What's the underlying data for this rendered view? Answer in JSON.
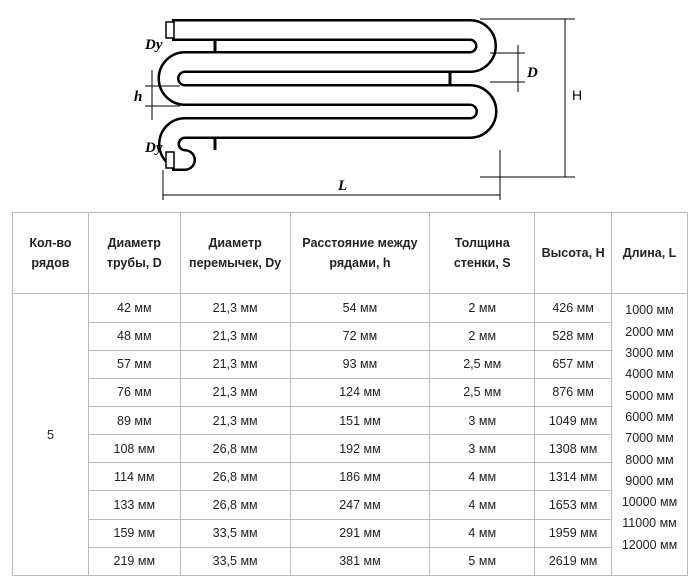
{
  "diagram": {
    "labels": {
      "dy_top": "Dy",
      "d": "D",
      "h": "h",
      "height": "H",
      "dy_bottom": "Dy",
      "length": "L"
    }
  },
  "table": {
    "header": [
      "Кол-во рядов",
      "Диаметр трубы, D",
      "Диаметр перемычек, Dy",
      "Расстояние между рядами, h",
      "Толщина стенки, S",
      "Высота, H",
      "Длина, L"
    ],
    "rows_count": "5",
    "rows": [
      [
        "42 мм",
        "21,3 мм",
        "54 мм",
        "2 мм",
        "426 мм"
      ],
      [
        "48 мм",
        "21,3 мм",
        "72 мм",
        "2 мм",
        "528 мм"
      ],
      [
        "57 мм",
        "21,3 мм",
        "93 мм",
        "2,5 мм",
        "657 мм"
      ],
      [
        "76 мм",
        "21,3 мм",
        "124 мм",
        "2,5 мм",
        "876 мм"
      ],
      [
        "89 мм",
        "21,3 мм",
        "151 мм",
        "3 мм",
        "1049 мм"
      ],
      [
        "108 мм",
        "26,8 мм",
        "192 мм",
        "3 мм",
        "1308 мм"
      ],
      [
        "114 мм",
        "26,8 мм",
        "186 мм",
        "4 мм",
        "1314 мм"
      ],
      [
        "133 мм",
        "26,8 мм",
        "247 мм",
        "4 мм",
        "1653 мм"
      ],
      [
        "159 мм",
        "33,5 мм",
        "291 мм",
        "4 мм",
        "1959 мм"
      ],
      [
        "219 мм",
        "33,5 мм",
        "381 мм",
        "5 мм",
        "2619 мм"
      ]
    ],
    "lengths": [
      "1000 мм",
      "2000 мм",
      "3000 мм",
      "4000 мм",
      "5000 мм",
      "6000 мм",
      "7000 мм",
      "8000 мм",
      "9000 мм",
      "10000 мм",
      "11000 мм",
      "12000 мм"
    ]
  }
}
